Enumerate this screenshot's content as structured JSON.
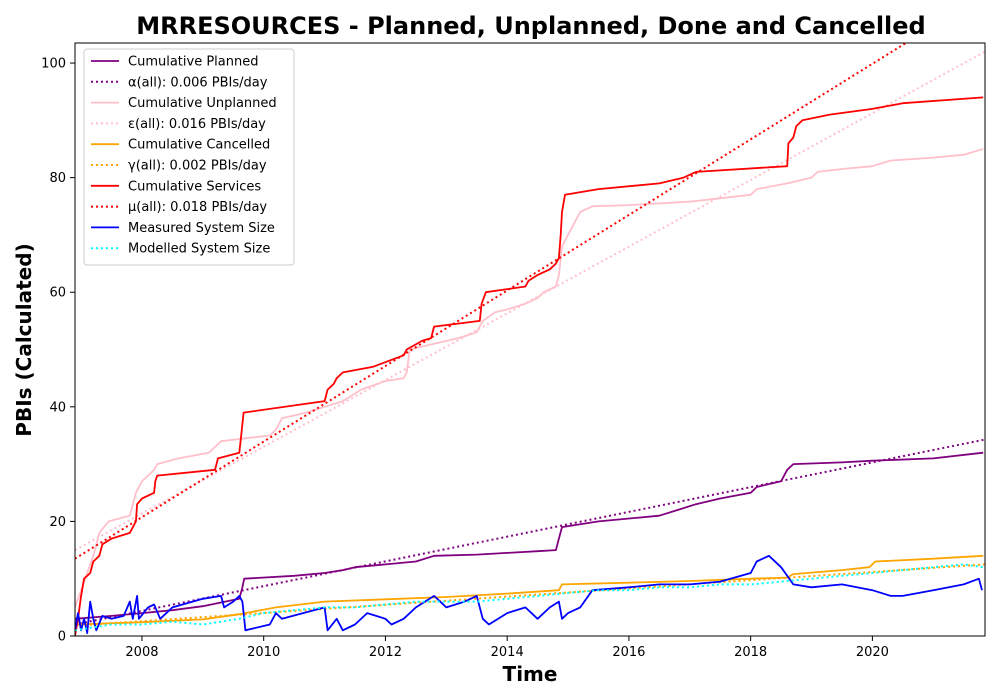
{
  "chart_data": {
    "type": "line",
    "title": "MRRESOURCES - Planned, Unplanned, Done  and Cancelled",
    "xlabel": "Time",
    "ylabel": "PBIs (Calculated)",
    "xlim": [
      2006.9,
      2021.85
    ],
    "ylim": [
      0,
      103.5
    ],
    "x_ticks": [
      {
        "value": 2008,
        "label": "2008"
      },
      {
        "value": 2010,
        "label": "2010"
      },
      {
        "value": 2012,
        "label": "2012"
      },
      {
        "value": 2014,
        "label": "2014"
      },
      {
        "value": 2016,
        "label": "2016"
      },
      {
        "value": 2018,
        "label": "2018"
      },
      {
        "value": 2020,
        "label": "2020"
      }
    ],
    "y_ticks": [
      {
        "value": 0,
        "label": "0"
      },
      {
        "value": 20,
        "label": "20"
      },
      {
        "value": 40,
        "label": "40"
      },
      {
        "value": 60,
        "label": "60"
      },
      {
        "value": 80,
        "label": "80"
      },
      {
        "value": 100,
        "label": "100"
      }
    ],
    "grid": false,
    "legend_position": "top-left",
    "series": [
      {
        "name": "Cumulative Planned",
        "color": "#800080",
        "style": "solid",
        "points": [
          [
            2006.9,
            3
          ],
          [
            2007.5,
            3.5
          ],
          [
            2008.0,
            4
          ],
          [
            2008.5,
            4.5
          ],
          [
            2009.0,
            5.2
          ],
          [
            2009.6,
            6.5
          ],
          [
            2009.65,
            8.5
          ],
          [
            2009.68,
            10
          ],
          [
            2010.5,
            10.5
          ],
          [
            2011.0,
            11
          ],
          [
            2011.3,
            11.5
          ],
          [
            2011.5,
            12
          ],
          [
            2012.0,
            12.5
          ],
          [
            2012.5,
            13
          ],
          [
            2012.8,
            14
          ],
          [
            2013.5,
            14.2
          ],
          [
            2014.0,
            14.5
          ],
          [
            2014.5,
            14.8
          ],
          [
            2014.8,
            15
          ],
          [
            2014.85,
            17
          ],
          [
            2014.9,
            19
          ],
          [
            2015.5,
            20
          ],
          [
            2016.5,
            21
          ],
          [
            2016.8,
            22
          ],
          [
            2017.1,
            23
          ],
          [
            2017.5,
            24
          ],
          [
            2018.0,
            25
          ],
          [
            2018.1,
            26
          ],
          [
            2018.5,
            27
          ],
          [
            2018.6,
            29
          ],
          [
            2018.7,
            30
          ],
          [
            2019.5,
            30.3
          ],
          [
            2020.0,
            30.6
          ],
          [
            2021.0,
            31
          ],
          [
            2021.82,
            32
          ]
        ]
      },
      {
        "name": "α(all): 0.006 PBIs/day",
        "color": "#800080",
        "style": "dotted",
        "points": [
          [
            2006.9,
            2
          ],
          [
            2021.85,
            34.3
          ]
        ]
      },
      {
        "name": "Cumulative Unplanned",
        "color": "#ffc0cb",
        "style": "solid",
        "points": [
          [
            2006.9,
            5
          ],
          [
            2007.0,
            8
          ],
          [
            2007.1,
            11
          ],
          [
            2007.2,
            14
          ],
          [
            2007.3,
            18
          ],
          [
            2007.45,
            20
          ],
          [
            2007.8,
            21
          ],
          [
            2007.9,
            25
          ],
          [
            2008.0,
            27
          ],
          [
            2008.2,
            29
          ],
          [
            2008.25,
            30
          ],
          [
            2008.6,
            31
          ],
          [
            2009.1,
            32
          ],
          [
            2009.2,
            33
          ],
          [
            2009.3,
            34
          ],
          [
            2009.7,
            34.5
          ],
          [
            2010.1,
            35
          ],
          [
            2010.2,
            36
          ],
          [
            2010.3,
            38
          ],
          [
            2010.7,
            39
          ],
          [
            2011.0,
            40
          ],
          [
            2011.3,
            41
          ],
          [
            2011.6,
            43
          ],
          [
            2012.0,
            44.5
          ],
          [
            2012.3,
            45
          ],
          [
            2012.35,
            46
          ],
          [
            2012.4,
            50
          ],
          [
            2012.8,
            51
          ],
          [
            2013.2,
            52
          ],
          [
            2013.5,
            53
          ],
          [
            2013.6,
            55
          ],
          [
            2013.8,
            56.5
          ],
          [
            2014.0,
            57
          ],
          [
            2014.3,
            58
          ],
          [
            2014.5,
            59
          ],
          [
            2014.6,
            60
          ],
          [
            2014.8,
            61
          ],
          [
            2014.85,
            63
          ],
          [
            2014.9,
            68
          ],
          [
            2015.0,
            70
          ],
          [
            2015.1,
            72
          ],
          [
            2015.2,
            74
          ],
          [
            2015.4,
            75
          ],
          [
            2016.0,
            75.2
          ],
          [
            2017.0,
            75.8
          ],
          [
            2018.0,
            77
          ],
          [
            2018.1,
            78
          ],
          [
            2018.6,
            79
          ],
          [
            2019.0,
            80
          ],
          [
            2019.1,
            81
          ],
          [
            2019.5,
            81.5
          ],
          [
            2020.0,
            82
          ],
          [
            2020.3,
            83
          ],
          [
            2021.0,
            83.5
          ],
          [
            2021.5,
            84
          ],
          [
            2021.82,
            85
          ]
        ]
      },
      {
        "name": "ε(all): 0.016 PBIs/day",
        "color": "#ffc0cb",
        "style": "dotted",
        "points": [
          [
            2006.9,
            15
          ],
          [
            2021.85,
            102
          ]
        ]
      },
      {
        "name": "Cumulative Cancelled",
        "color": "#ffa500",
        "style": "solid",
        "points": [
          [
            2006.9,
            2
          ],
          [
            2008.0,
            2.4
          ],
          [
            2009.0,
            2.9
          ],
          [
            2009.6,
            3.8
          ],
          [
            2009.7,
            4
          ],
          [
            2010.2,
            5
          ],
          [
            2011.0,
            6
          ],
          [
            2012.0,
            6.4
          ],
          [
            2013.0,
            6.8
          ],
          [
            2014.0,
            7.4
          ],
          [
            2014.85,
            8
          ],
          [
            2014.9,
            9
          ],
          [
            2016.0,
            9.3
          ],
          [
            2017.0,
            9.6
          ],
          [
            2018.0,
            10
          ],
          [
            2018.6,
            10.2
          ],
          [
            2018.7,
            10.8
          ],
          [
            2019.5,
            11.5
          ],
          [
            2019.95,
            12
          ],
          [
            2020.05,
            13
          ],
          [
            2021.0,
            13.5
          ],
          [
            2021.82,
            14
          ]
        ]
      },
      {
        "name": "γ(all): 0.002 PBIs/day",
        "color": "#ffa500",
        "style": "dotted",
        "points": [
          [
            2006.9,
            1.8
          ],
          [
            2021.85,
            12.5
          ]
        ]
      },
      {
        "name": "Cumulative Services",
        "color": "#ff0000",
        "style": "solid",
        "points": [
          [
            2006.9,
            0
          ],
          [
            2006.95,
            3
          ],
          [
            2007.0,
            7
          ],
          [
            2007.05,
            10
          ],
          [
            2007.15,
            11
          ],
          [
            2007.2,
            13
          ],
          [
            2007.3,
            14
          ],
          [
            2007.35,
            16
          ],
          [
            2007.5,
            17
          ],
          [
            2007.8,
            18
          ],
          [
            2007.9,
            20
          ],
          [
            2007.92,
            23
          ],
          [
            2008.0,
            24
          ],
          [
            2008.2,
            25
          ],
          [
            2008.22,
            27
          ],
          [
            2008.25,
            28
          ],
          [
            2009.2,
            29
          ],
          [
            2009.25,
            31
          ],
          [
            2009.6,
            32
          ],
          [
            2009.63,
            35
          ],
          [
            2009.67,
            39
          ],
          [
            2011.0,
            41
          ],
          [
            2011.05,
            43
          ],
          [
            2011.15,
            44
          ],
          [
            2011.2,
            45
          ],
          [
            2011.3,
            46
          ],
          [
            2011.8,
            47
          ],
          [
            2012.3,
            49
          ],
          [
            2012.35,
            50
          ],
          [
            2012.6,
            51.5
          ],
          [
            2012.75,
            52
          ],
          [
            2012.8,
            54
          ],
          [
            2013.55,
            55
          ],
          [
            2013.58,
            58
          ],
          [
            2013.65,
            60
          ],
          [
            2014.3,
            61
          ],
          [
            2014.35,
            62
          ],
          [
            2014.5,
            63
          ],
          [
            2014.7,
            64
          ],
          [
            2014.8,
            65
          ],
          [
            2014.85,
            66
          ],
          [
            2014.88,
            70
          ],
          [
            2014.9,
            74
          ],
          [
            2014.95,
            77
          ],
          [
            2015.5,
            78
          ],
          [
            2016.5,
            79
          ],
          [
            2016.9,
            80
          ],
          [
            2017.1,
            81
          ],
          [
            2018.6,
            82
          ],
          [
            2018.62,
            86
          ],
          [
            2018.7,
            87
          ],
          [
            2018.75,
            89
          ],
          [
            2018.85,
            90
          ],
          [
            2019.3,
            91
          ],
          [
            2020.0,
            92
          ],
          [
            2020.5,
            93
          ],
          [
            2021.82,
            94
          ]
        ]
      },
      {
        "name": "μ(all): 0.018 PBIs/day",
        "color": "#ff0000",
        "style": "dotted",
        "points": [
          [
            2006.9,
            13.5
          ],
          [
            2020.55,
            103.5
          ]
        ]
      },
      {
        "name": "Measured System Size",
        "color": "#0000ff",
        "style": "solid",
        "points": [
          [
            2006.9,
            1
          ],
          [
            2006.95,
            4
          ],
          [
            2007.0,
            1
          ],
          [
            2007.05,
            3
          ],
          [
            2007.1,
            0.5
          ],
          [
            2007.15,
            6
          ],
          [
            2007.2,
            3
          ],
          [
            2007.25,
            1
          ],
          [
            2007.35,
            3.5
          ],
          [
            2007.5,
            3
          ],
          [
            2007.7,
            3.5
          ],
          [
            2007.8,
            6
          ],
          [
            2007.85,
            3
          ],
          [
            2007.92,
            7
          ],
          [
            2007.95,
            3
          ],
          [
            2008.1,
            5
          ],
          [
            2008.2,
            5.5
          ],
          [
            2008.3,
            3
          ],
          [
            2008.5,
            5
          ],
          [
            2009.0,
            6.5
          ],
          [
            2009.3,
            7
          ],
          [
            2009.35,
            5
          ],
          [
            2009.5,
            6
          ],
          [
            2009.6,
            7
          ],
          [
            2009.65,
            6
          ],
          [
            2009.7,
            1
          ],
          [
            2010.1,
            2
          ],
          [
            2010.2,
            4
          ],
          [
            2010.3,
            3
          ],
          [
            2011.0,
            5
          ],
          [
            2011.05,
            1
          ],
          [
            2011.2,
            3
          ],
          [
            2011.3,
            1
          ],
          [
            2011.5,
            2
          ],
          [
            2011.7,
            4
          ],
          [
            2012.0,
            3
          ],
          [
            2012.1,
            2
          ],
          [
            2012.3,
            3
          ],
          [
            2012.5,
            5
          ],
          [
            2012.8,
            7
          ],
          [
            2013.0,
            5
          ],
          [
            2013.3,
            6
          ],
          [
            2013.5,
            7
          ],
          [
            2013.6,
            3
          ],
          [
            2013.7,
            2
          ],
          [
            2014.0,
            4
          ],
          [
            2014.3,
            5
          ],
          [
            2014.5,
            3
          ],
          [
            2014.7,
            5
          ],
          [
            2014.85,
            6
          ],
          [
            2014.9,
            3
          ],
          [
            2015.0,
            4
          ],
          [
            2015.2,
            5
          ],
          [
            2015.4,
            8
          ],
          [
            2016.0,
            8.5
          ],
          [
            2016.5,
            9
          ],
          [
            2017.0,
            9
          ],
          [
            2017.5,
            9.5
          ],
          [
            2018.0,
            11
          ],
          [
            2018.1,
            13
          ],
          [
            2018.3,
            14
          ],
          [
            2018.5,
            12
          ],
          [
            2018.7,
            9
          ],
          [
            2019.0,
            8.5
          ],
          [
            2019.5,
            9
          ],
          [
            2020.0,
            8
          ],
          [
            2020.3,
            7
          ],
          [
            2020.5,
            7
          ],
          [
            2021.0,
            8
          ],
          [
            2021.5,
            9
          ],
          [
            2021.75,
            10
          ],
          [
            2021.8,
            8
          ]
        ]
      },
      {
        "name": "Modelled System Size",
        "color": "#00ffff",
        "style": "dotted",
        "points": [
          [
            2006.9,
            1
          ],
          [
            2007.2,
            1.5
          ],
          [
            2007.5,
            2
          ],
          [
            2008.0,
            2
          ],
          [
            2008.5,
            2.5
          ],
          [
            2009.0,
            2
          ],
          [
            2009.6,
            3
          ],
          [
            2010.0,
            4
          ],
          [
            2010.5,
            4.5
          ],
          [
            2011.0,
            5
          ],
          [
            2011.5,
            5
          ],
          [
            2012.0,
            5.5
          ],
          [
            2012.5,
            6
          ],
          [
            2013.0,
            6
          ],
          [
            2013.5,
            6
          ],
          [
            2014.0,
            6.5
          ],
          [
            2014.5,
            7
          ],
          [
            2015.0,
            7.5
          ],
          [
            2015.5,
            8
          ],
          [
            2016.0,
            8
          ],
          [
            2016.5,
            8.5
          ],
          [
            2017.0,
            8.5
          ],
          [
            2017.5,
            9
          ],
          [
            2018.0,
            9
          ],
          [
            2018.5,
            9.5
          ],
          [
            2019.0,
            10
          ],
          [
            2019.5,
            10.5
          ],
          [
            2020.0,
            11
          ],
          [
            2020.5,
            11.5
          ],
          [
            2021.0,
            12
          ],
          [
            2021.5,
            12.5
          ],
          [
            2021.82,
            12
          ]
        ]
      }
    ]
  }
}
